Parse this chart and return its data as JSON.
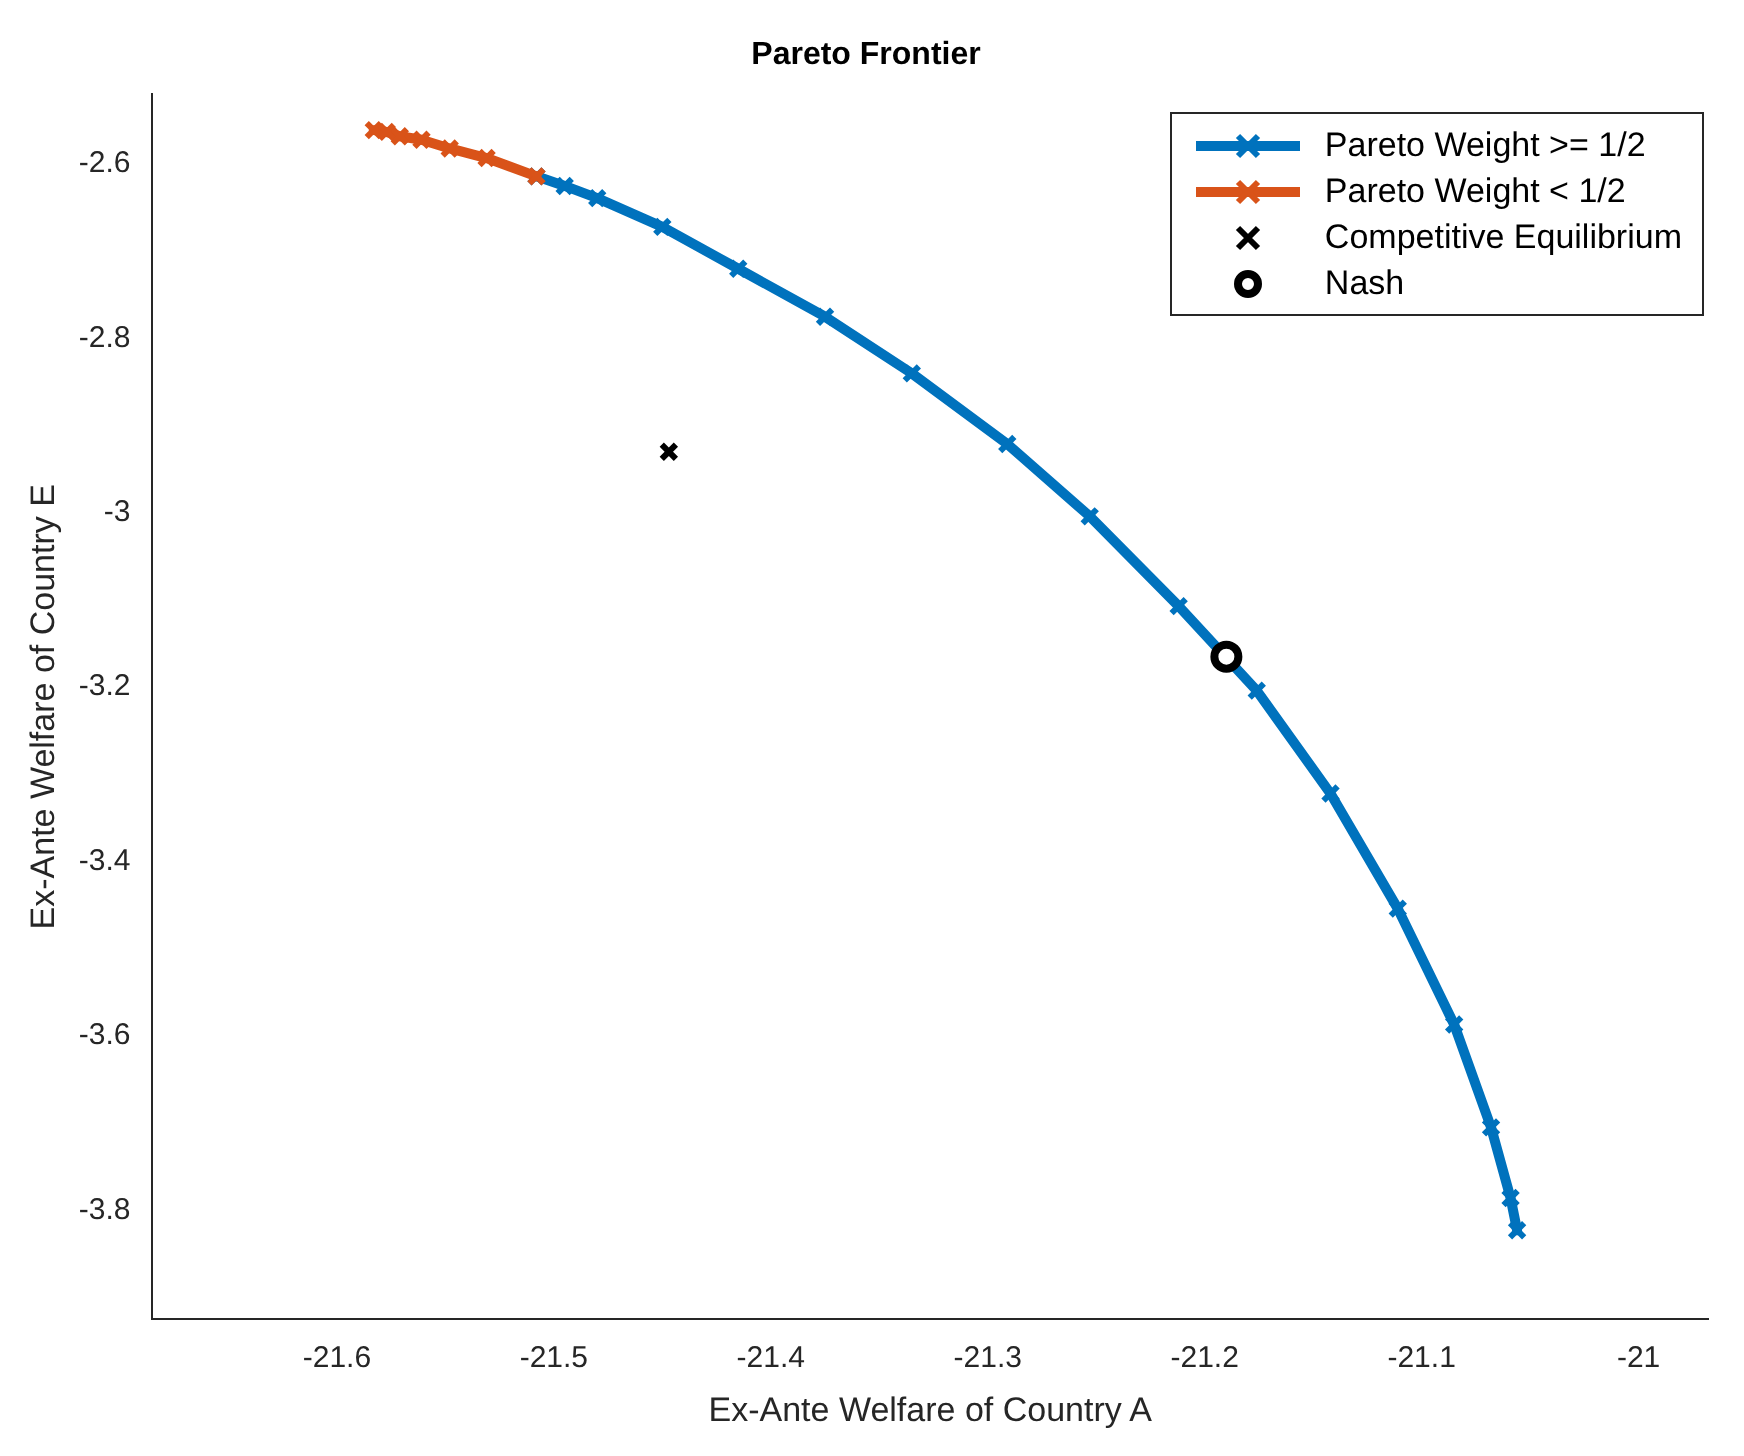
{
  "chart_data": {
    "type": "line",
    "title": "Pareto Frontier",
    "xlabel": "Ex-Ante Welfare of Country A",
    "ylabel": "Ex-Ante Welfare of Country E",
    "xlim": [
      -21.685,
      -20.968
    ],
    "ylim": [
      -3.925,
      -2.52
    ],
    "xticks": [
      -21.6,
      -21.5,
      -21.4,
      -21.3,
      -21.2,
      -21.1,
      -21
    ],
    "yticks": [
      -3.8,
      -3.6,
      -3.4,
      -3.2,
      -3,
      -2.8,
      -2.6
    ],
    "grid": false,
    "legend": "top right",
    "series": [
      {
        "name": "Pareto Weight >= 1/2",
        "type": "line",
        "color": "#0072bd",
        "marker": "cross",
        "line_style": "solid",
        "x": [
          -21.508,
          -21.495,
          -21.48,
          -21.45,
          -21.415,
          -21.375,
          -21.335,
          -21.291,
          -21.253,
          -21.212,
          -21.176,
          -21.142,
          -21.111,
          -21.085,
          -21.068,
          -21.059,
          -21.056
        ],
        "values": [
          -2.614,
          -2.625,
          -2.639,
          -2.672,
          -2.72,
          -2.775,
          -2.84,
          -2.921,
          -3.004,
          -3.107,
          -3.204,
          -3.322,
          -3.454,
          -3.587,
          -3.705,
          -3.786,
          -3.823
        ]
      },
      {
        "name": "Pareto Weight < 1/2",
        "type": "line",
        "color": "#d95319",
        "marker": "cross",
        "line_style": "solid",
        "x": [
          -21.583,
          -21.577,
          -21.571,
          -21.561,
          -21.548,
          -21.531,
          -21.508
        ],
        "values": [
          -2.561,
          -2.563,
          -2.568,
          -2.572,
          -2.582,
          -2.593,
          -2.614
        ]
      },
      {
        "name": "Competitive Equilibrium",
        "type": "scatter",
        "color": "#000000",
        "marker": "cross",
        "x": [
          -21.447
        ],
        "values": [
          -2.93
        ]
      },
      {
        "name": "Nash",
        "type": "scatter",
        "color": "#000000",
        "marker": "circle",
        "x": [
          -21.19
        ],
        "values": [
          -3.165
        ]
      }
    ]
  }
}
